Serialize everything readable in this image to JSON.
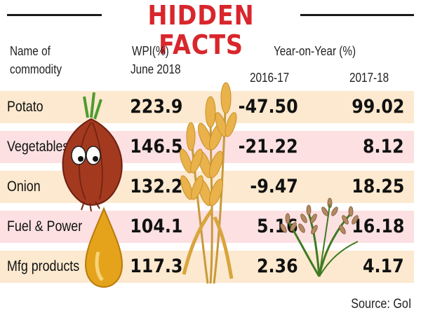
{
  "chart_data": {
    "type": "table",
    "title": "HIDDEN FACTS",
    "columns": {
      "name_line1": "Name of",
      "name_line2": "commodity",
      "wpi_line1": "WPI(%)",
      "wpi_line2": "June 2018",
      "yoy_group": "Year-on-Year (%)",
      "yoy_1": "2016-17",
      "yoy_2": "2017-18"
    },
    "rows": [
      {
        "name": "Potato",
        "wpi": "223.9",
        "yoy_2016_17": "-47.50",
        "yoy_2017_18": "99.02"
      },
      {
        "name": "Vegetables",
        "wpi": "146.5",
        "yoy_2016_17": "-21.22",
        "yoy_2017_18": "8.12"
      },
      {
        "name": "Onion",
        "wpi": "132.2",
        "yoy_2016_17": "-9.47",
        "yoy_2017_18": "18.25"
      },
      {
        "name": "Fuel & Power",
        "wpi": "104.1",
        "yoy_2016_17": "5.16",
        "yoy_2017_18": "16.18"
      },
      {
        "name": "Mfg products",
        "wpi": "117.3",
        "yoy_2016_17": "2.36",
        "yoy_2017_18": "4.17"
      }
    ],
    "source": "Source: GoI"
  },
  "colors": {
    "title": "#d8262c",
    "row_peach": "#fce9cf",
    "row_pink": "#fce0e2"
  },
  "icons": [
    "onion-icon",
    "wheat-icon",
    "fuel-drop-icon",
    "rice-plant-icon"
  ]
}
